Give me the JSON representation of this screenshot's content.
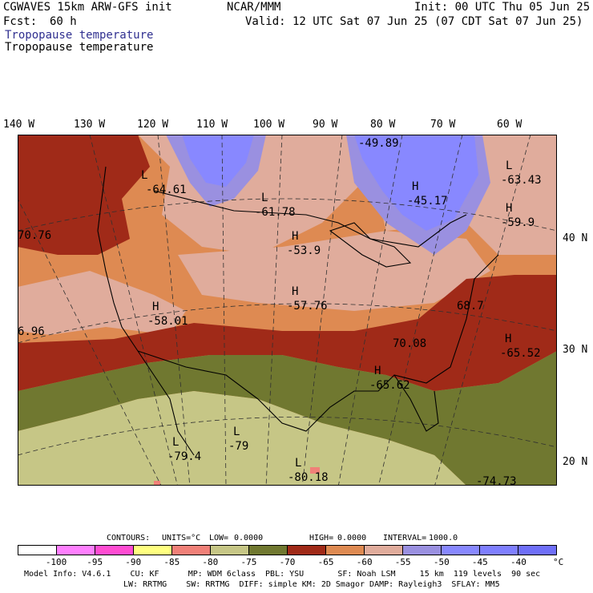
{
  "header": {
    "model_line": "CGWAVES 15km ARW-GFS init",
    "center": "NCAR/MMM",
    "init": "Init: 00 UTC Thu 05 Jun 25",
    "fcst_label": "Fcst:",
    "fcst_value": "60 h",
    "valid": "Valid: 12 UTC Sat 07 Jun 25 (07 CDT Sat 07 Jun 25)",
    "field_title_1": "Tropopause temperature",
    "field_title_2": "Tropopause temperature"
  },
  "longitudes": [
    "140 W",
    "130 W",
    "120 W",
    "110 W",
    "100 W",
    "90 W",
    "80 W",
    "70 W",
    "60 W"
  ],
  "latitudes": [
    "40 N",
    "30 N",
    "20 N"
  ],
  "map_labels": [
    {
      "mark": "L",
      "value": "-64.61"
    },
    {
      "mark": "L",
      "value": "-61.78"
    },
    {
      "mark": "",
      "value": "-49.89"
    },
    {
      "mark": "H",
      "value": "-45.17"
    },
    {
      "mark": "L",
      "value": "-63.43"
    },
    {
      "mark": "H",
      "value": "-59.9"
    },
    {
      "mark": "H",
      "value": "-53.9"
    },
    {
      "mark": "",
      "value": "70.76"
    },
    {
      "mark": "H",
      "value": "-58.01"
    },
    {
      "mark": "H",
      "value": "-57.76"
    },
    {
      "mark": "",
      "value": "68.7"
    },
    {
      "mark": "",
      "value": "6.96"
    },
    {
      "mark": "",
      "value": "70.08"
    },
    {
      "mark": "H",
      "value": "-65.52"
    },
    {
      "mark": "H",
      "value": "-65.62"
    },
    {
      "mark": "L",
      "value": "-79.4"
    },
    {
      "mark": "L",
      "value": "-79"
    },
    {
      "mark": "L",
      "value": "-80.18"
    },
    {
      "mark": "",
      "value": "-74.73"
    }
  ],
  "contour_info": {
    "contours": "CONTOURS:",
    "units": "UNITS=°C",
    "low": "LOW=",
    "low_value": "0.0000",
    "high": "HIGH=",
    "high_value": "0.0000",
    "interval": "INTERVAL=",
    "interval_value": "1000.0"
  },
  "legend": {
    "colors": [
      "#ffffff",
      "#ff80ff",
      "#ff4dd2",
      "#ffff80",
      "#f08078",
      "#c6c686",
      "#707830",
      "#a02a18",
      "#de8a52",
      "#e0ac9c",
      "#9a90e0",
      "#8888ff",
      "#7f7fff",
      "#6f6ff8"
    ],
    "labels": [
      "-100",
      "-95",
      "-90",
      "-85",
      "-80",
      "-75",
      "-70",
      "-65",
      "-60",
      "-55",
      "-50",
      "-45",
      "-40"
    ],
    "unit": "°C"
  },
  "footer": {
    "line1": "Model Info: V4.6.1    CU: KF      MP: WDM 6class  PBL: YSU       SF: Noah LSM     15 km  119 levels  90 sec",
    "line2": "LW: RRTMG    SW: RRTMG  DIFF: simple KM: 2D Smagor DAMP: Rayleigh3  SFLAY: MM5"
  }
}
